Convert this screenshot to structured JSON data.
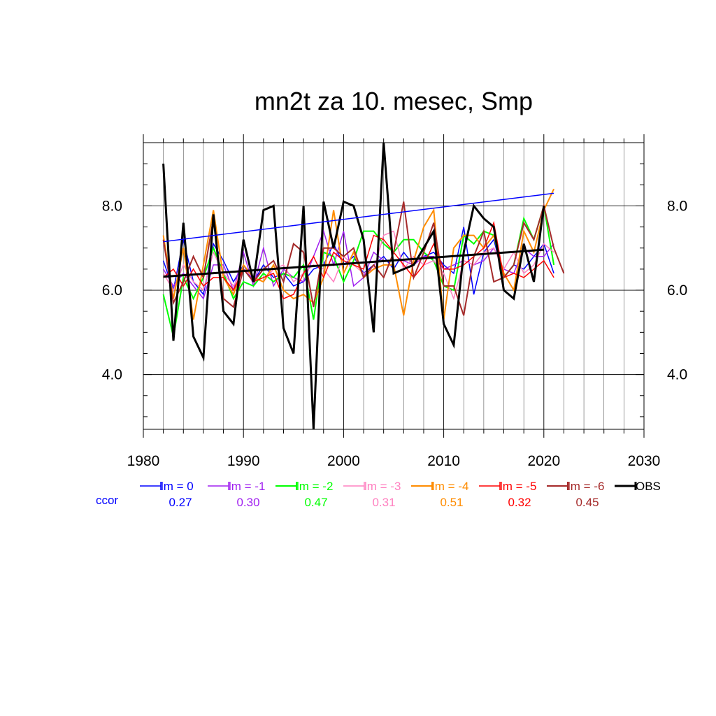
{
  "chart_data": {
    "type": "line",
    "title": "mn2t za 10. mesec, Smp",
    "xlabel": "",
    "ylabel": "",
    "xlim": [
      1980,
      2030
    ],
    "ylim": [
      2.7,
      9.5
    ],
    "x_ticks": [
      "1980",
      "1990",
      "2000",
      "2010",
      "2020",
      "2030"
    ],
    "y_ticks": [
      "4.0",
      "6.0",
      "8.0"
    ],
    "grid": true,
    "legend_placement": "bottom",
    "ccor_label": "ccor",
    "ccor_color": "#0000ff",
    "series": [
      {
        "name": "lm = 0",
        "color": "#0000ff",
        "ccor": "0.27",
        "linewidth": 1.5,
        "x": [
          1982,
          1983,
          1984,
          1985,
          1986,
          1987,
          1988,
          1989,
          1990,
          1991,
          1992,
          1993,
          1994,
          1995,
          1996,
          1997,
          1998,
          1999,
          2000,
          2001,
          2002,
          2003,
          2004,
          2005,
          2006,
          2007,
          2008,
          2009,
          2010,
          2011,
          2012,
          2013,
          2014,
          2015,
          2016,
          2017,
          2018,
          2019,
          2020,
          2021
        ],
        "values": [
          6.7,
          6.0,
          7.2,
          6.2,
          5.9,
          7.1,
          6.7,
          6.2,
          6.6,
          6.2,
          6.6,
          6.3,
          6.4,
          6.1,
          6.2,
          6.5,
          6.6,
          7.1,
          6.6,
          6.8,
          6.4,
          6.6,
          6.8,
          6.5,
          6.9,
          6.6,
          6.8,
          6.9,
          6.6,
          6.4,
          7.5,
          5.9,
          6.9,
          7.2,
          6.3,
          6.6,
          6.5,
          6.8,
          7.1,
          6.4
        ]
      },
      {
        "name": "lm = -1",
        "color": "#a020f0",
        "ccor": "0.30",
        "linewidth": 1.5,
        "x": [
          1982,
          1983,
          1984,
          1985,
          1986,
          1987,
          1988,
          1989,
          1990,
          1991,
          1992,
          1993,
          1994,
          1995,
          1996,
          1997,
          1998,
          1999,
          2000,
          2001,
          2002,
          2003,
          2004,
          2005,
          2006,
          2007,
          2008,
          2009,
          2010,
          2011,
          2012,
          2013,
          2014,
          2015,
          2016,
          2017,
          2018,
          2019,
          2020,
          2021
        ],
        "values": [
          6.5,
          6.1,
          6.4,
          6.1,
          5.8,
          6.6,
          6.6,
          6.0,
          6.9,
          6.1,
          7.0,
          6.1,
          6.5,
          6.3,
          6.2,
          6.8,
          7.4,
          6.6,
          7.4,
          6.1,
          6.3,
          6.9,
          6.7,
          6.7,
          6.7,
          6.6,
          6.8,
          6.8,
          6.5,
          6.6,
          6.7,
          6.6,
          6.7,
          7.0,
          6.5,
          6.4,
          7.0,
          6.8,
          6.8,
          7.1
        ]
      },
      {
        "name": "lm = -2",
        "color": "#00ff00",
        "ccor": "0.47",
        "linewidth": 2,
        "x": [
          1982,
          1983,
          1984,
          1985,
          1986,
          1987,
          1988,
          1989,
          1990,
          1991,
          1992,
          1993,
          1994,
          1995,
          1996,
          1997,
          1998,
          1999,
          2000,
          2001,
          2002,
          2003,
          2004,
          2005,
          2006,
          2007,
          2008,
          2009,
          2010,
          2011,
          2012,
          2013,
          2014,
          2015,
          2016,
          2017,
          2018,
          2019,
          2020,
          2021
        ],
        "values": [
          5.9,
          4.9,
          6.3,
          5.8,
          6.3,
          7.0,
          6.4,
          5.8,
          6.2,
          6.1,
          6.4,
          6.2,
          6.4,
          6.3,
          6.6,
          5.3,
          6.9,
          6.8,
          6.2,
          6.7,
          7.4,
          7.4,
          7.1,
          6.9,
          7.2,
          7.2,
          6.9,
          6.7,
          6.1,
          6.0,
          7.3,
          7.1,
          7.4,
          7.3,
          6.3,
          6.6,
          7.7,
          7.2,
          8.0,
          6.6
        ]
      },
      {
        "name": "lm = -3",
        "color": "#ff80c0",
        "ccor": "0.31",
        "linewidth": 1.5,
        "x": [
          1982,
          1983,
          1984,
          1985,
          1986,
          1987,
          1988,
          1989,
          1990,
          1991,
          1992,
          1993,
          1994,
          1995,
          1996,
          1997,
          1998,
          1999,
          2000,
          2001,
          2002,
          2003,
          2004,
          2005,
          2006,
          2007,
          2008,
          2009,
          2010,
          2011,
          2012,
          2013,
          2014,
          2015,
          2016,
          2017,
          2018,
          2019,
          2020,
          2021
        ],
        "values": [
          6.4,
          6.0,
          6.6,
          6.2,
          6.0,
          6.9,
          6.4,
          6.1,
          6.5,
          6.3,
          6.2,
          6.5,
          6.6,
          6.2,
          6.4,
          6.6,
          6.5,
          6.2,
          6.8,
          6.6,
          6.4,
          6.5,
          7.3,
          7.4,
          6.5,
          6.8,
          6.6,
          6.7,
          6.4,
          5.8,
          6.7,
          6.6,
          6.9,
          7.0,
          6.5,
          6.9,
          6.4,
          6.6,
          7.1,
          6.9
        ]
      },
      {
        "name": "lm = -4",
        "color": "#ff8c00",
        "ccor": "0.51",
        "linewidth": 2,
        "x": [
          1982,
          1983,
          1984,
          1985,
          1986,
          1987,
          1988,
          1989,
          1990,
          1991,
          1992,
          1993,
          1994,
          1995,
          1996,
          1997,
          1998,
          1999,
          2000,
          2001,
          2002,
          2003,
          2004,
          2005,
          2006,
          2007,
          2008,
          2009,
          2010,
          2011,
          2012,
          2013,
          2014,
          2015,
          2016,
          2017,
          2018,
          2019,
          2020,
          2021
        ],
        "values": [
          7.3,
          5.8,
          7.0,
          5.3,
          6.6,
          7.9,
          6.3,
          5.9,
          6.6,
          6.3,
          6.2,
          6.6,
          6.0,
          5.8,
          5.9,
          5.7,
          6.3,
          7.9,
          6.4,
          6.9,
          6.3,
          6.5,
          6.6,
          6.6,
          5.4,
          6.7,
          7.5,
          7.9,
          5.3,
          7.0,
          7.3,
          7.3,
          7.0,
          7.3,
          6.4,
          6.0,
          7.4,
          6.9,
          7.9,
          8.4
        ]
      },
      {
        "name": "lm = -5",
        "color": "#ff0000",
        "ccor": "0.32",
        "linewidth": 1.5,
        "x": [
          1982,
          1983,
          1984,
          1985,
          1986,
          1987,
          1988,
          1989,
          1990,
          1991,
          1992,
          1993,
          1994,
          1995,
          1996,
          1997,
          1998,
          1999,
          2000,
          2001,
          2002,
          2003,
          2004,
          2005,
          2006,
          2007,
          2008,
          2009,
          2010,
          2011,
          2012,
          2013,
          2014,
          2015,
          2016,
          2017,
          2018,
          2019,
          2020,
          2021
        ],
        "values": [
          6.3,
          6.5,
          6.1,
          6.5,
          6.1,
          6.3,
          6.3,
          6.0,
          6.5,
          6.2,
          6.3,
          6.4,
          5.8,
          5.9,
          6.4,
          6.8,
          6.3,
          6.9,
          6.7,
          6.6,
          6.5,
          7.3,
          7.2,
          6.9,
          6.6,
          6.3,
          6.6,
          7.1,
          6.5,
          6.5,
          6.6,
          6.8,
          7.0,
          7.6,
          6.3,
          6.4,
          6.3,
          6.5,
          6.7,
          6.3
        ]
      },
      {
        "name": "lm = -6",
        "color": "#a52a2a",
        "ccor": "0.45",
        "linewidth": 2,
        "x": [
          1982,
          1983,
          1984,
          1985,
          1986,
          1987,
          1988,
          1989,
          1990,
          1991,
          1992,
          1993,
          1994,
          1995,
          1996,
          1997,
          1998,
          1999,
          2000,
          2001,
          2002,
          2003,
          2004,
          2005,
          2006,
          2007,
          2008,
          2009,
          2010,
          2011,
          2012,
          2013,
          2014,
          2015,
          2016,
          2017,
          2018,
          2019,
          2020,
          2021,
          2022
        ],
        "values": [
          7.2,
          5.7,
          6.2,
          6.8,
          6.3,
          7.7,
          5.8,
          5.6,
          6.5,
          6.2,
          6.5,
          6.7,
          6.2,
          7.1,
          6.9,
          5.6,
          7.0,
          7.0,
          6.8,
          7.0,
          6.3,
          6.6,
          6.3,
          6.9,
          8.1,
          6.3,
          6.9,
          7.6,
          6.1,
          6.1,
          5.4,
          6.8,
          7.4,
          6.2,
          6.3,
          6.6,
          7.6,
          7.2,
          8.0,
          7.0,
          6.4
        ]
      },
      {
        "name": "OBS",
        "color": "#000000",
        "ccor": "",
        "linewidth": 3,
        "x": [
          1982,
          1983,
          1984,
          1985,
          1986,
          1987,
          1988,
          1989,
          1990,
          1991,
          1992,
          1993,
          1994,
          1995,
          1996,
          1997,
          1998,
          1999,
          2000,
          2001,
          2002,
          2003,
          2004,
          2005,
          2006,
          2007,
          2008,
          2009,
          2010,
          2011,
          2012,
          2013,
          2014,
          2015,
          2016,
          2017,
          2018,
          2019,
          2020
        ],
        "values": [
          9.0,
          4.8,
          7.6,
          4.9,
          4.4,
          7.8,
          5.5,
          5.2,
          7.2,
          6.2,
          7.9,
          8.0,
          5.1,
          4.5,
          8.0,
          2.7,
          8.1,
          7.0,
          8.1,
          8.0,
          7.2,
          5.0,
          9.5,
          6.4,
          6.5,
          6.6,
          7.0,
          7.4,
          5.2,
          4.7,
          6.9,
          8.0,
          7.7,
          7.5,
          6.0,
          5.8,
          7.1,
          6.2,
          8.0
        ]
      }
    ],
    "trend_lines": [
      {
        "color": "#0000ff",
        "x": [
          1982,
          2021
        ],
        "values": [
          7.15,
          8.3
        ],
        "linewidth": 1.5
      },
      {
        "color": "#000000",
        "x": [
          1982,
          2020
        ],
        "values": [
          6.32,
          6.96
        ],
        "linewidth": 3
      }
    ]
  }
}
